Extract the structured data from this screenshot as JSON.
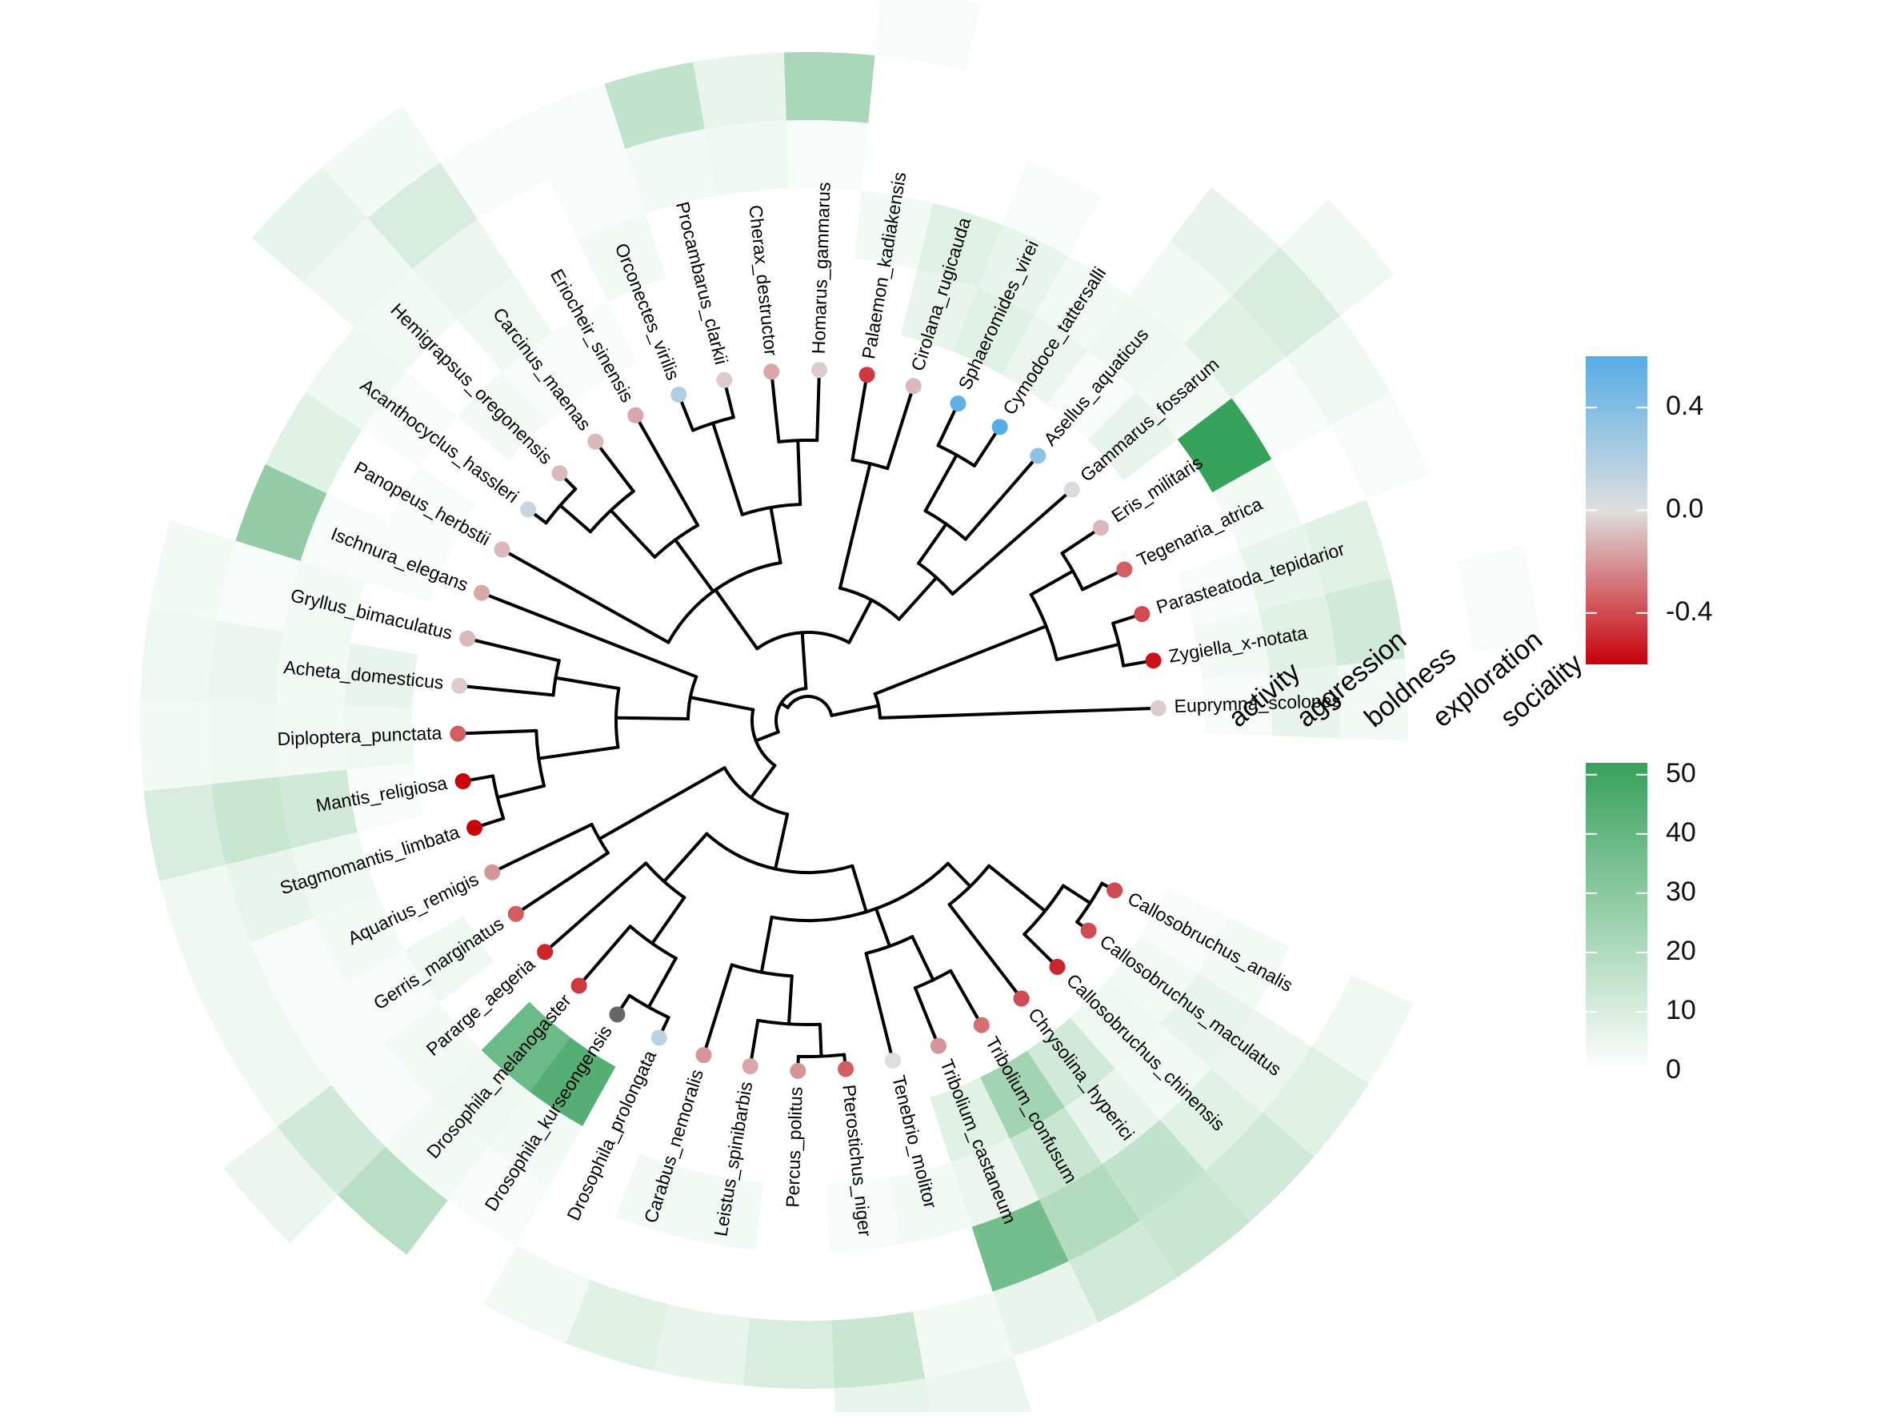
{
  "chart_data": {
    "type": "circular-phylogeny-heatmap",
    "tracks": [
      "activity",
      "aggression",
      "boldness",
      "exploration",
      "sociality"
    ],
    "species": [
      {
        "name": "Euprymna_scolopes",
        "estimate": -0.05,
        "counts": [
          2,
          6,
          3,
          0,
          0
        ]
      },
      {
        "name": "Zygiella_x-notata",
        "estimate": -0.55,
        "counts": [
          3,
          8,
          12,
          0,
          2
        ]
      },
      {
        "name": "Parasteatoda_tepidarior",
        "estimate": -0.4,
        "counts": [
          2,
          6,
          8,
          0,
          0
        ]
      },
      {
        "name": "Tegenaria_atrica",
        "estimate": -0.35,
        "counts": [
          0,
          3,
          0,
          2,
          0
        ]
      },
      {
        "name": "Eris_militaris",
        "estimate": -0.1,
        "counts": [
          0,
          52,
          2,
          4,
          0
        ]
      },
      {
        "name": "Gammarus_fossarum",
        "estimate": 0.02,
        "counts": [
          6,
          3,
          8,
          10,
          4
        ]
      },
      {
        "name": "Asellus_aquaticus",
        "estimate": 0.35,
        "counts": [
          2,
          4,
          3,
          6,
          0
        ]
      },
      {
        "name": "Cymodoce_tattersalli",
        "estimate": 0.6,
        "counts": [
          5,
          3,
          0,
          0,
          0
        ]
      },
      {
        "name": "Sphaeromides_virei",
        "estimate": 0.55,
        "counts": [
          8,
          6,
          2,
          0,
          0
        ]
      },
      {
        "name": "Cirolana_rugicauda",
        "estimate": -0.1,
        "counts": [
          6,
          8,
          0,
          0,
          0
        ]
      },
      {
        "name": "Palaemon_kadiakensis",
        "estimate": -0.45,
        "counts": [
          0,
          3,
          0,
          0,
          2
        ]
      },
      {
        "name": "Homarus_gammarus",
        "estimate": -0.05,
        "counts": [
          0,
          0,
          2,
          22,
          0
        ]
      },
      {
        "name": "Cherax_destructor",
        "estimate": -0.15,
        "counts": [
          0,
          0,
          4,
          6,
          0
        ]
      },
      {
        "name": "Procambarus_clarkii",
        "estimate": -0.05,
        "counts": [
          0,
          0,
          3,
          16,
          0
        ]
      },
      {
        "name": "Orconectes_virilis",
        "estimate": 0.2,
        "counts": [
          0,
          3,
          2,
          2,
          0
        ]
      },
      {
        "name": "Eriocheir_sinensis",
        "estimate": -0.15,
        "counts": [
          2,
          0,
          0,
          2,
          0
        ]
      },
      {
        "name": "Carcinus_maenas",
        "estimate": -0.1,
        "counts": [
          2,
          4,
          5,
          10,
          3
        ]
      },
      {
        "name": "Hemigrapsus_oregonensis",
        "estimate": -0.1,
        "counts": [
          3,
          0,
          3,
          4,
          6
        ]
      },
      {
        "name": "Acanthocyclus_hassleri",
        "estimate": 0.1,
        "counts": [
          0,
          2,
          4,
          0,
          0
        ]
      },
      {
        "name": "Panopeus_herbstii",
        "estimate": -0.1,
        "counts": [
          2,
          0,
          8,
          0,
          0
        ]
      },
      {
        "name": "Ischnura_elegans",
        "estimate": -0.15,
        "counts": [
          2,
          2,
          28,
          0,
          0
        ]
      },
      {
        "name": "Gryllus_bimaculatus",
        "estimate": -0.1,
        "counts": [
          0,
          3,
          2,
          3,
          0
        ]
      },
      {
        "name": "Acheta_domesticus",
        "estimate": -0.05,
        "counts": [
          6,
          3,
          5,
          4,
          0
        ]
      },
      {
        "name": "Diploptera_punctata",
        "estimate": -0.35,
        "counts": [
          4,
          3,
          4,
          3,
          0
        ]
      },
      {
        "name": "Mantis_religiosa",
        "estimate": -1.0,
        "counts": [
          2,
          12,
          14,
          10,
          0
        ]
      },
      {
        "name": "Stagmomantis_limbata",
        "estimate": -0.95,
        "counts": [
          0,
          4,
          6,
          4,
          0
        ]
      },
      {
        "name": "Aquarius_remigis",
        "estimate": -0.2,
        "counts": [
          0,
          3,
          2,
          4,
          0
        ]
      },
      {
        "name": "Gerris_marginatus",
        "estimate": -0.35,
        "counts": [
          4,
          2,
          2,
          4,
          0
        ]
      },
      {
        "name": "Pararge_aegeria",
        "estimate": -0.5,
        "counts": [
          0,
          3,
          2,
          12,
          5
        ]
      },
      {
        "name": "Drosophila_melanogaster",
        "estimate": -0.45,
        "counts": [
          38,
          4,
          3,
          18,
          0
        ]
      },
      {
        "name": "Drosophila_kurseongensis",
        "estimate": null,
        "counts": [
          44,
          3,
          2,
          0,
          0
        ]
      },
      {
        "name": "Drosophila_prolongata",
        "estimate": 0.15,
        "counts": [
          0,
          0,
          0,
          3,
          0
        ]
      },
      {
        "name": "Carabus_nemoralis",
        "estimate": -0.2,
        "counts": [
          0,
          3,
          0,
          8,
          0
        ]
      },
      {
        "name": "Leistus_spinibarbis",
        "estimate": -0.15,
        "counts": [
          0,
          3,
          0,
          6,
          0
        ]
      },
      {
        "name": "Percus_politus",
        "estimate": -0.2,
        "counts": [
          0,
          0,
          0,
          10,
          0
        ]
      },
      {
        "name": "Pterostichus_niger",
        "estimate": -0.35,
        "counts": [
          0,
          2,
          0,
          14,
          6
        ]
      },
      {
        "name": "Tenebrio_molitor",
        "estimate": 0.0,
        "counts": [
          0,
          3,
          0,
          3,
          5
        ]
      },
      {
        "name": "Tribolium_castaneum",
        "estimate": -0.2,
        "counts": [
          8,
          5,
          36,
          6,
          0
        ]
      },
      {
        "name": "Tribolium_confusum",
        "estimate": -0.3,
        "counts": [
          24,
          14,
          20,
          12,
          0
        ]
      },
      {
        "name": "Chrysolina_hyperici",
        "estimate": -0.4,
        "counts": [
          12,
          6,
          16,
          14,
          0
        ]
      },
      {
        "name": "Callosobruchus_chinensis",
        "estimate": -0.5,
        "counts": [
          4,
          3,
          8,
          12,
          0
        ]
      },
      {
        "name": "Callosobruchus_maculatus",
        "estimate": -0.4,
        "counts": [
          3,
          6,
          5,
          8,
          0
        ]
      },
      {
        "name": "Callosobruchus_analis",
        "estimate": -0.4,
        "counts": [
          2,
          3,
          0,
          4,
          0
        ]
      }
    ],
    "color_scale_estimate": {
      "ticks": [
        "0.4",
        "0.0",
        "-0.4"
      ],
      "low": "#c9000a",
      "mid": "#dedede",
      "high": "#55ace7",
      "range": [
        -0.6,
        0.6
      ]
    },
    "color_scale_counts": {
      "ticks": [
        "50",
        "40",
        "30",
        "20",
        "10",
        "0"
      ],
      "low": "#ffffff",
      "high": "#36a15b",
      "range": [
        0,
        52
      ]
    },
    "na_color": "#666666"
  }
}
